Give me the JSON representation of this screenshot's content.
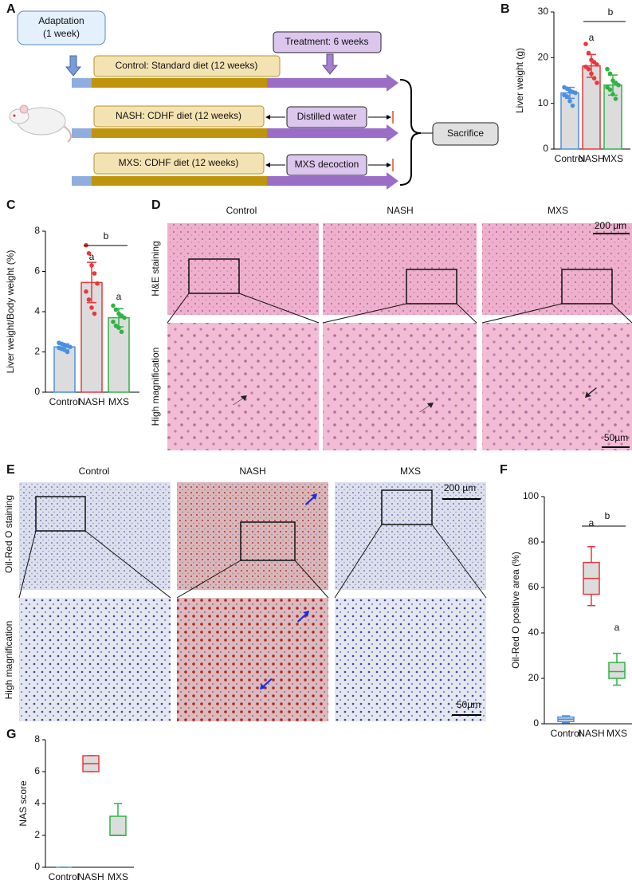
{
  "diagram": {
    "panel": "A",
    "adaptation": [
      "Adaptation",
      "(1 week)"
    ],
    "treatment": "Treatment: 6 weeks",
    "groups": [
      {
        "diet": "Control: Standard diet (12 weeks)"
      },
      {
        "diet": "NASH: CDHF diet (12 weeks)",
        "treatment": "Distilled water"
      },
      {
        "diet": "MXS: CDHF diet (12 weeks)",
        "treatment": "MXS decoction"
      }
    ],
    "outcome": "Sacrifice"
  },
  "histology": [
    {
      "panel": "D",
      "columns": [
        "Control",
        "NASH",
        "MXS"
      ],
      "rows": [
        "H&E staining",
        "High magnification"
      ],
      "scale_bars": [
        "200 µm",
        "50µm"
      ]
    },
    {
      "panel": "E",
      "columns": [
        "Control",
        "NASH",
        "MXS"
      ],
      "rows": [
        "Oil-Red O staining",
        "High magnification"
      ],
      "scale_bars": [
        "200 µm",
        "50µm"
      ]
    }
  ],
  "chart_data": [
    {
      "type": "bar",
      "panel": "B",
      "y_label": "Liver weight (g)",
      "categories": [
        "Control",
        "NASH",
        "MXS"
      ],
      "colors": [
        "#4a90e2",
        "#e8383d",
        "#2fb344"
      ],
      "values": [
        12.3,
        18.2,
        14.0
      ],
      "errors": [
        1.2,
        2.5,
        2.2
      ],
      "points": [
        [
          13.5,
          13.2,
          12.8,
          12.5,
          12.3,
          11.8,
          11.5,
          10.5,
          9.5
        ],
        [
          23,
          21,
          19.5,
          19,
          18.5,
          18,
          17.5,
          16.5,
          15.5,
          14.5
        ],
        [
          17.5,
          16.5,
          15,
          14.5,
          14,
          13.5,
          13,
          12,
          11
        ]
      ],
      "annotations": [
        "a",
        "b"
      ],
      "ylim": [
        0,
        30
      ],
      "yticks": [
        0,
        10,
        20,
        30
      ]
    },
    {
      "type": "bar",
      "panel": "C",
      "y_label": "Liver weight/Body weight (%)",
      "categories": [
        "Control",
        "NASH",
        "MXS"
      ],
      "colors": [
        "#4a90e2",
        "#e8383d",
        "#2fb344"
      ],
      "values": [
        2.25,
        5.45,
        3.7
      ],
      "errors": [
        0.15,
        1.0,
        0.45
      ],
      "points": [
        [
          2.45,
          2.4,
          2.35,
          2.3,
          2.25,
          2.2,
          2.15,
          2.1,
          2.0
        ],
        [
          7.3,
          6.9,
          6.3,
          5.9,
          5.4,
          5.0,
          4.6,
          4.2,
          3.9
        ],
        [
          4.3,
          4.1,
          3.9,
          3.8,
          3.7,
          3.5,
          3.3,
          3.2,
          3.0
        ]
      ],
      "annotations": [
        "a",
        "a",
        "b"
      ],
      "ylim": [
        0,
        8
      ],
      "yticks": [
        0,
        2,
        4,
        6,
        8
      ]
    },
    {
      "type": "box",
      "panel": "F",
      "y_label": "Oil-Red O positive area (%)",
      "categories": [
        "Control",
        "NASH",
        "MXS"
      ],
      "colors": [
        "#4a90e2",
        "#e8383d",
        "#2fb344"
      ],
      "boxes": [
        {
          "min": 0.5,
          "q1": 1,
          "median": 2,
          "q3": 3,
          "max": 3.5
        },
        {
          "min": 52,
          "q1": 57,
          "median": 64,
          "q3": 71,
          "max": 78
        },
        {
          "min": 17,
          "q1": 20,
          "median": 23,
          "q3": 27,
          "max": 31
        }
      ],
      "annotations": [
        "a",
        "a",
        "b"
      ],
      "ylim": [
        0,
        100
      ],
      "yticks": [
        0,
        20,
        40,
        60,
        80,
        100
      ]
    },
    {
      "type": "box",
      "panel": "G",
      "y_label": "NAS score",
      "categories": [
        "Control",
        "NASH",
        "MXS"
      ],
      "colors": [
        "#4a90e2",
        "#e8383d",
        "#2fb344"
      ],
      "boxes": [
        {
          "min": 0,
          "q1": 0,
          "median": 0,
          "q3": 0,
          "max": 0
        },
        {
          "min": 6,
          "q1": 6,
          "median": 6.5,
          "q3": 7,
          "max": 7
        },
        {
          "min": 2,
          "q1": 2,
          "median": 2,
          "q3": 3.2,
          "max": 4
        }
      ],
      "ylim": [
        0,
        8
      ],
      "yticks": [
        0,
        2,
        4,
        6,
        8
      ]
    }
  ]
}
